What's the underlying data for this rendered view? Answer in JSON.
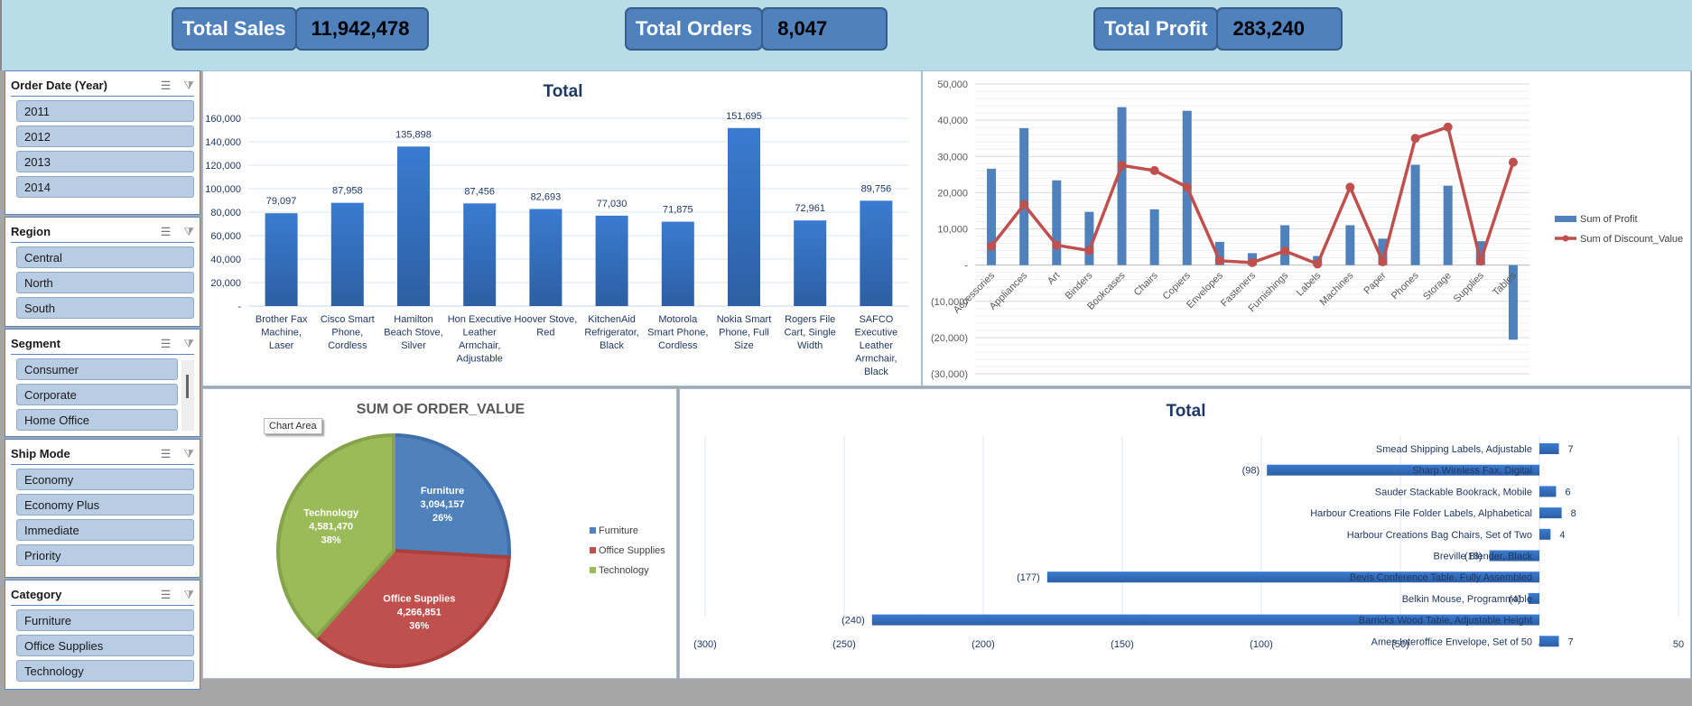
{
  "kpis": [
    {
      "label": "Total Sales",
      "value": "11,942,478"
    },
    {
      "label": "Total Orders",
      "value": "8,047"
    },
    {
      "label": "Total Profit",
      "value": "283,240"
    }
  ],
  "slicers": [
    {
      "title": "Order Date (Year)",
      "items": [
        "2011",
        "2012",
        "2013",
        "2014"
      ]
    },
    {
      "title": "Region",
      "items": [
        "Central",
        "North",
        "South"
      ]
    },
    {
      "title": "Segment",
      "items": [
        "Consumer",
        "Corporate",
        "Home Office"
      ]
    },
    {
      "title": "Ship Mode",
      "items": [
        "Economy",
        "Economy Plus",
        "Immediate",
        "Priority"
      ]
    },
    {
      "title": "Category",
      "items": [
        "Furniture",
        "Office Supplies",
        "Technology"
      ]
    }
  ],
  "slicer_icons": {
    "multi_select": "multi-select-icon",
    "clear_filter": "clear-filter-icon"
  },
  "tooltip": "Chart Area",
  "colors": {
    "bar_blue": "#3a78c9",
    "profit_blue": "#4f81bd",
    "discount_red": "#c0504d",
    "tech_green": "#9bbb59",
    "title_navy": "#1f3864"
  },
  "chart_data": [
    {
      "type": "bar",
      "title": "Total",
      "categories": [
        "Brother Fax Machine, Laser",
        "Cisco Smart Phone, Cordless",
        "Hamilton Beach Stove, Silver",
        "Hon Executive Leather Armchair, Adjustable",
        "Hoover Stove, Red",
        "KitchenAid Refrigerator, Black",
        "Motorola Smart Phone, Cordless",
        "Nokia Smart Phone, Full Size",
        "Rogers File Cart, Single Width",
        "SAFCO Executive Leather Armchair, Black"
      ],
      "values": [
        79097,
        87958,
        135898,
        87456,
        82693,
        77030,
        71875,
        151695,
        72961,
        89756
      ],
      "data_labels": [
        "79,097",
        "87,958",
        "135,898",
        "87,456",
        "82,693",
        "77,030",
        "71,875",
        "151,695",
        "72,961",
        "89,756"
      ],
      "yticks": [
        "-",
        "20,000",
        "40,000",
        "60,000",
        "80,000",
        "100,000",
        "120,000",
        "140,000",
        "160,000"
      ],
      "ylim": [
        0,
        160000
      ],
      "grid": true
    },
    {
      "type": "bar+line",
      "title": "",
      "categories": [
        "Accessories",
        "Appliances",
        "Art",
        "Binders",
        "Bookcases",
        "Chairs",
        "Copiers",
        "Envelopes",
        "Fasteners",
        "Furnishings",
        "Labels",
        "Machines",
        "Paper",
        "Phones",
        "Storage",
        "Supplies",
        "Tables"
      ],
      "series": [
        {
          "name": "Sum of Profit",
          "type": "bar",
          "values": [
            26600,
            37800,
            23400,
            14700,
            43600,
            15400,
            42600,
            6400,
            3300,
            11000,
            2500,
            11000,
            7300,
            27700,
            21900,
            6600,
            -20600
          ]
        },
        {
          "name": "Sum of Discount_Value",
          "type": "line",
          "values": [
            5200,
            16700,
            5500,
            4000,
            27500,
            26100,
            21500,
            1200,
            700,
            3900,
            300,
            21500,
            900,
            35000,
            38100,
            1100,
            28400
          ]
        }
      ],
      "yticks": [
        "(30,000)",
        "(20,000)",
        "(10,000)",
        "-",
        "10,000",
        "20,000",
        "30,000",
        "40,000",
        "50,000"
      ],
      "ylim": [
        -30000,
        50000
      ],
      "legend": "right",
      "grid": true
    },
    {
      "type": "pie",
      "title": "SUM OF ORDER_VALUE",
      "slices": [
        {
          "label": "Furniture",
          "value": 3094157,
          "value_label": "3,094,157",
          "pct": "26%"
        },
        {
          "label": "Office Supplies",
          "value": 4266851,
          "value_label": "4,266,851",
          "pct": "36%"
        },
        {
          "label": "Technology",
          "value": 4581470,
          "value_label": "4,581,470",
          "pct": "38%"
        }
      ],
      "legend": "right"
    },
    {
      "type": "bar",
      "orientation": "horizontal",
      "title": "Total",
      "categories": [
        "Smead Shipping Labels, Adjustable",
        "Sharp Wireless Fax, Digital",
        "Sauder Stackable Bookrack, Mobile",
        "Harbour Creations File Folder Labels, Alphabetical",
        "Harbour Creations Bag Chairs, Set of Two",
        "Breville Blender, Black",
        "Bevis Conference Table, Fully Assembled",
        "Belkin Mouse, Programmable",
        "Barricks Wood Table, Adjustable Height",
        "Ames Interoffice Envelope, Set of 50"
      ],
      "values": [
        7,
        -98,
        6,
        8,
        4,
        -18,
        -177,
        -4,
        -240,
        7
      ],
      "data_labels": [
        "7",
        "(98)",
        "6",
        "8",
        "4",
        "(18)",
        "(177)",
        "(4)",
        "(240)",
        "7"
      ],
      "xticks": [
        "(300)",
        "(250)",
        "(200)",
        "(150)",
        "(100)",
        "(50)",
        "-",
        "50"
      ],
      "xlim": [
        -300,
        50
      ],
      "grid": true
    }
  ]
}
